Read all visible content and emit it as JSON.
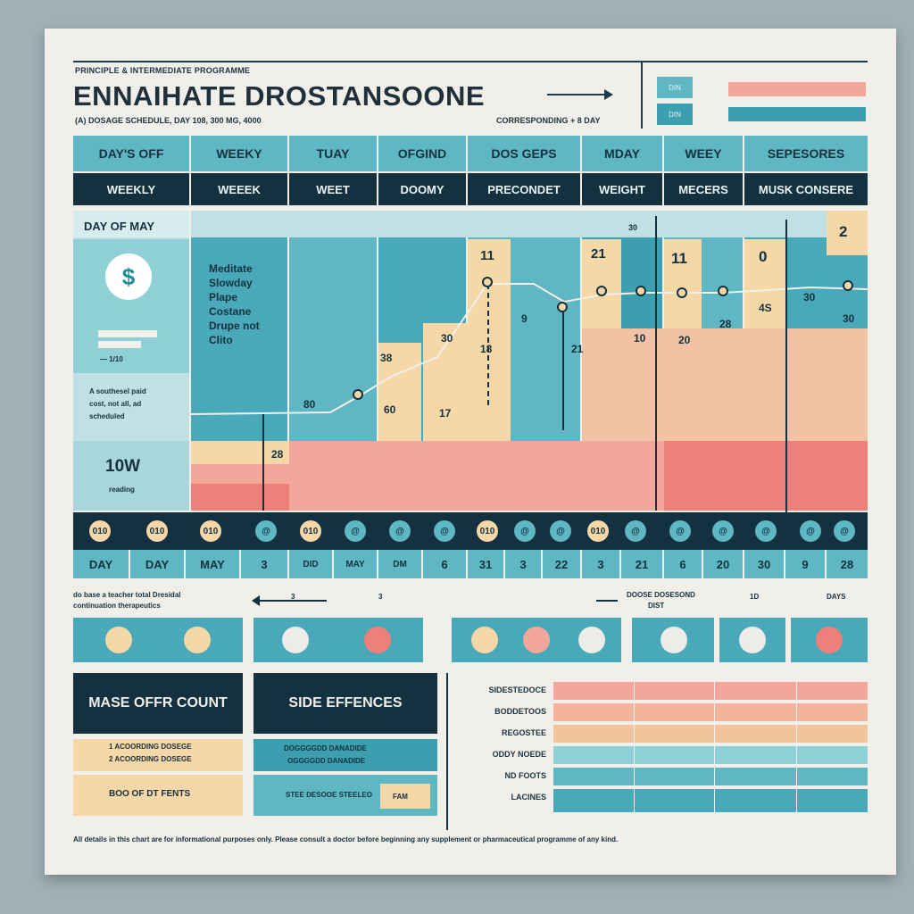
{
  "header": {
    "kicker": "PRINCIPLE & INTERMEDIATE PROGRAMME",
    "title": "ENNAIHATE DROSTANSOONE",
    "subtitle": "(A) DOSAGE SCHEDULE, DAY 108, 300 MG, 4000",
    "subtitle_right": "CORRESPONDING + 8 DAY",
    "legend": [
      {
        "label": "DIN",
        "box_color": "#5fb7c4",
        "bar_color": "#f3a79a"
      },
      {
        "label": "DIN",
        "box_color": "#3c9fb0",
        "bar_color": "#3c9fb0"
      }
    ]
  },
  "columns_top": [
    "DAY'S OFF",
    "WEEKY",
    "TUAY",
    "OFGIND",
    "DOS GEPS",
    "MDAY",
    "WEEY",
    "SEPESORES"
  ],
  "columns_sub": [
    "WEEKLY",
    "WEEEK",
    "WEET",
    "DOOMY",
    "PRECONDET",
    "WEIGHT",
    "MECERS",
    "MUSK CONSERE"
  ],
  "left_panel": {
    "day_label": "DAY OF MAY",
    "coin_symbol": "$",
    "mini_caption": "— 1/10",
    "notes": [
      "A southesel paid",
      "cost, not all, ad",
      "scheduled"
    ],
    "big_value": "10W",
    "big_caption": "reading"
  },
  "text_block": [
    "Meditate",
    "Slowday",
    "Plape",
    "Costane",
    "Drupe not",
    "Clito"
  ],
  "value_labels": [
    "11",
    "21",
    "11",
    "0",
    "2",
    "30",
    "9",
    "21",
    "10",
    "20",
    "28",
    "30",
    "38",
    "18",
    "30",
    "60",
    "17",
    "80",
    "30",
    "4S",
    "28"
  ],
  "icon_row": [
    "010",
    "010",
    "010",
    "@",
    "010",
    "@",
    "@",
    "@",
    "010",
    "@",
    "@",
    "010",
    "@",
    "@",
    "@",
    "@",
    "@",
    "@",
    "@"
  ],
  "day_row": [
    "DAY",
    "DAY",
    "MAY",
    "3",
    "DID",
    "MAY",
    "DM",
    "6",
    "31",
    "3",
    "22",
    "3",
    "21",
    "6",
    "20",
    "30",
    "9",
    "28"
  ],
  "mid_notes": {
    "left": "do base a teacher total Dresidal",
    "left2": "continuation therapeutics",
    "arrow_left": "3",
    "arrow_right": "3",
    "right": "DOOSE DOSESOND",
    "right2": "DIST",
    "right3": "1D",
    "right4": "DAYS"
  },
  "bottom_left": {
    "title_a": "MASE OFFR COUNT",
    "lines_a": [
      "1 ACOORDING DOSEGE",
      "2 ACOORDING DOSEGE"
    ],
    "foot_a": "BOO OF DT FENTS",
    "title_b": "SIDE EFFENCES",
    "lines_b": [
      "DOGGGGDD DANADIDE",
      "OGGGGDD DANADIDE"
    ],
    "foot_b": "STEE DESOOE STEELEO",
    "foot_b2": "FAM"
  },
  "table": {
    "rows": [
      "SIDESTEDOCE",
      "BODDETOOS",
      "REGOSTEE",
      "ODDY NOEDE",
      "ND FOOTS",
      "LACINES"
    ]
  },
  "footer": "All details in this chart are for informational purposes only. Please consult a doctor before beginning any supplement or pharmaceutical programme of any kind.",
  "colors": {
    "teal": "#5fb7c4",
    "teal_dark": "#3c9fb0",
    "navy": "#13313f",
    "peach": "#f6d7a8",
    "salmon": "#f3a79a",
    "coral": "#ee8079",
    "paper": "#f1efea"
  }
}
